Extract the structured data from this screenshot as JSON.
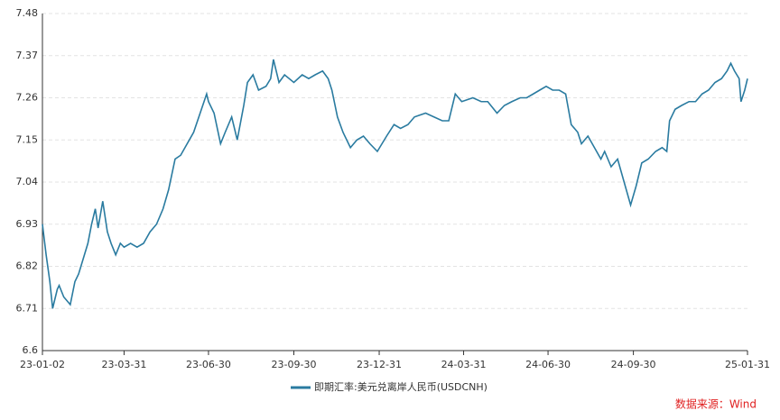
{
  "chart_data": {
    "type": "line",
    "x": [
      "23-01-02",
      "23-01-06",
      "23-01-10",
      "23-01-13",
      "23-01-18",
      "23-01-20",
      "23-01-25",
      "23-02-01",
      "23-02-06",
      "23-02-10",
      "23-02-15",
      "23-02-20",
      "23-02-24",
      "23-02-28",
      "23-03-03",
      "23-03-08",
      "23-03-13",
      "23-03-17",
      "23-03-22",
      "23-03-27",
      "23-03-31",
      "23-04-07",
      "23-04-14",
      "23-04-21",
      "23-04-28",
      "23-05-05",
      "23-05-12",
      "23-05-18",
      "23-05-25",
      "23-05-31",
      "23-06-07",
      "23-06-14",
      "23-06-21",
      "23-06-28",
      "23-06-30",
      "23-07-06",
      "23-07-13",
      "23-07-18",
      "23-07-25",
      "23-07-31",
      "23-08-07",
      "23-08-11",
      "23-08-17",
      "23-08-23",
      "23-08-31",
      "23-09-05",
      "23-09-08",
      "23-09-14",
      "23-09-20",
      "23-09-30",
      "23-10-09",
      "23-10-16",
      "23-10-23",
      "23-10-31",
      "23-11-06",
      "23-11-10",
      "23-11-16",
      "23-11-22",
      "23-11-30",
      "23-12-07",
      "23-12-14",
      "23-12-21",
      "23-12-29",
      "24-01-08",
      "24-01-16",
      "24-01-23",
      "24-01-31",
      "24-02-07",
      "24-02-19",
      "24-02-28",
      "24-03-08",
      "24-03-15",
      "24-03-22",
      "24-03-29",
      "24-04-10",
      "24-04-19",
      "24-04-26",
      "24-05-06",
      "24-05-14",
      "24-05-22",
      "24-05-31",
      "24-06-07",
      "24-06-14",
      "24-06-21",
      "24-06-28",
      "24-07-05",
      "24-07-12",
      "24-07-19",
      "24-07-25",
      "24-08-01",
      "24-08-05",
      "24-08-12",
      "24-08-19",
      "24-08-26",
      "24-08-30",
      "24-09-06",
      "24-09-13",
      "24-09-20",
      "24-09-27",
      "24-10-03",
      "24-10-09",
      "24-10-16",
      "24-10-24",
      "24-10-31",
      "24-11-05",
      "24-11-08",
      "24-11-14",
      "24-11-21",
      "24-11-29",
      "24-12-06",
      "24-12-13",
      "24-12-20",
      "24-12-27",
      "25-01-03",
      "25-01-09",
      "25-01-13",
      "25-01-17",
      "25-01-22",
      "25-01-24",
      "25-01-28",
      "25-01-31"
    ],
    "series": [
      {
        "name": "即期汇率:美元兑离岸人民币(USDCNH)",
        "color": "#2a7ba0",
        "values": [
          6.93,
          6.85,
          6.78,
          6.71,
          6.76,
          6.77,
          6.74,
          6.72,
          6.78,
          6.8,
          6.84,
          6.88,
          6.93,
          6.97,
          6.92,
          6.99,
          6.91,
          6.88,
          6.85,
          6.88,
          6.87,
          6.88,
          6.87,
          6.88,
          6.91,
          6.93,
          6.97,
          7.02,
          7.1,
          7.11,
          7.14,
          7.17,
          7.22,
          7.27,
          7.25,
          7.22,
          7.14,
          7.17,
          7.21,
          7.15,
          7.24,
          7.3,
          7.32,
          7.28,
          7.29,
          7.31,
          7.36,
          7.3,
          7.32,
          7.3,
          7.32,
          7.31,
          7.32,
          7.33,
          7.31,
          7.28,
          7.21,
          7.17,
          7.13,
          7.15,
          7.16,
          7.14,
          7.12,
          7.16,
          7.19,
          7.18,
          7.19,
          7.21,
          7.22,
          7.21,
          7.2,
          7.2,
          7.27,
          7.25,
          7.26,
          7.25,
          7.25,
          7.22,
          7.24,
          7.25,
          7.26,
          7.26,
          7.27,
          7.28,
          7.29,
          7.28,
          7.28,
          7.27,
          7.19,
          7.17,
          7.14,
          7.16,
          7.13,
          7.1,
          7.12,
          7.08,
          7.1,
          7.04,
          6.98,
          7.03,
          7.09,
          7.1,
          7.12,
          7.13,
          7.12,
          7.2,
          7.23,
          7.24,
          7.25,
          7.25,
          7.27,
          7.28,
          7.3,
          7.31,
          7.33,
          7.35,
          7.33,
          7.31,
          7.25,
          7.28,
          7.31
        ]
      }
    ],
    "xlim": [
      "23-01-02",
      "25-01-31"
    ],
    "xticks": [
      "23-01-02",
      "23-03-31",
      "23-06-30",
      "23-09-30",
      "23-12-31",
      "24-03-31",
      "24-06-30",
      "24-09-30",
      "25-01-31"
    ],
    "ylim": [
      6.6,
      7.48
    ],
    "yticks": [
      6.6,
      6.71,
      6.82,
      6.93,
      7.04,
      7.15,
      7.26,
      7.37,
      7.48
    ],
    "grid": true,
    "source": "数据来源：Wind"
  }
}
